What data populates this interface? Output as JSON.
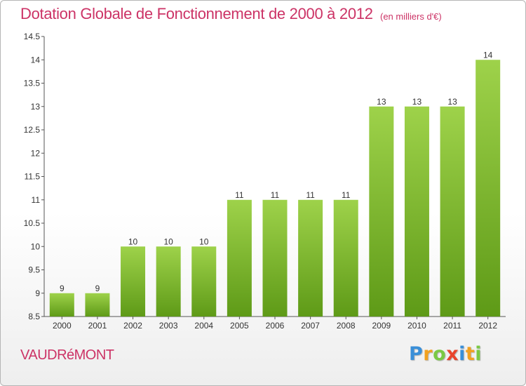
{
  "title": "Dotation Globale de Fonctionnement de 2000 à 2012",
  "subtitle": "(en milliers d'€)",
  "commune": "VAUDRéMONT",
  "logo": {
    "letters": [
      {
        "ch": "P",
        "color": "#3a8fd8"
      },
      {
        "ch": "r",
        "color": "#f2a11f"
      },
      {
        "ch": "o",
        "color": "#7ac943"
      },
      {
        "ch": "x",
        "color": "#e9442c"
      },
      {
        "ch": "i",
        "color": "#3a8fd8"
      },
      {
        "ch": "t",
        "color": "#f2a11f"
      },
      {
        "ch": "i",
        "color": "#7ac943"
      }
    ]
  },
  "chart_data": {
    "type": "bar",
    "categories": [
      "2000",
      "2001",
      "2002",
      "2003",
      "2004",
      "2005",
      "2006",
      "2007",
      "2008",
      "2009",
      "2010",
      "2011",
      "2012"
    ],
    "values": [
      9,
      9,
      10,
      10,
      10,
      11,
      11,
      11,
      11,
      13,
      13,
      13,
      14
    ],
    "ylim": [
      8.5,
      14.5
    ],
    "yticks": [
      "8.5",
      "9",
      "9.5",
      "10",
      "10.5",
      "11",
      "11.5",
      "12",
      "12.5",
      "13",
      "13.5",
      "14",
      "14.5"
    ],
    "grid": false,
    "colors": {
      "bar_top": "#9ed24a",
      "bar_bottom": "#5e9a17",
      "axis": "#555555"
    }
  }
}
